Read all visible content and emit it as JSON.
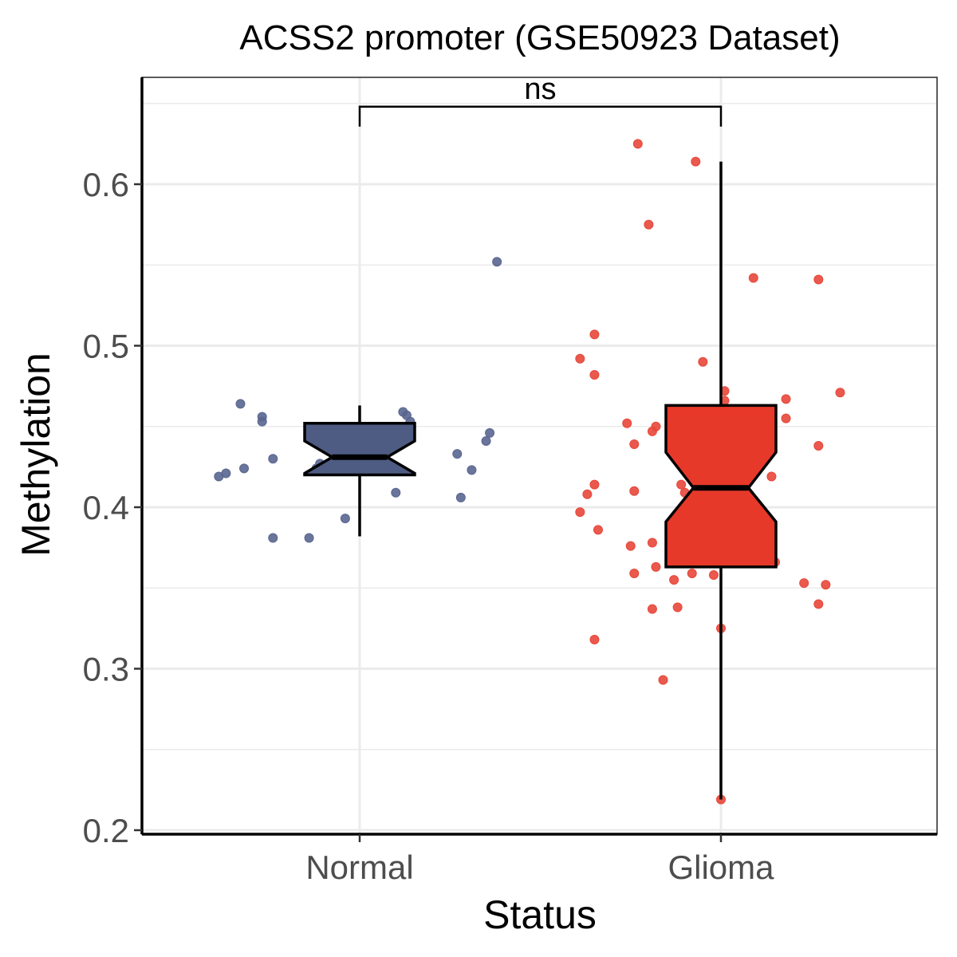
{
  "chart_data": {
    "type": "box",
    "title": "ACSS2 promoter (GSE50923 Dataset)",
    "xlabel": "Status",
    "ylabel": "Methylation",
    "ylim": [
      0.197,
      0.665
    ],
    "yticks": [
      0.2,
      0.3,
      0.4,
      0.5,
      0.6
    ],
    "ytick_labels": [
      "0.2",
      "0.3",
      "0.4",
      "0.5",
      "0.6"
    ],
    "grid": true,
    "categories": [
      "Normal",
      "Glioma"
    ],
    "significance": {
      "label": "ns",
      "groups": [
        "Normal",
        "Glioma"
      ],
      "y": 0.648
    },
    "series": [
      {
        "name": "Normal",
        "color": "#4E5B82",
        "point_color": "#5A6690",
        "box": {
          "whisker_low": 0.382,
          "q1": 0.42,
          "median": 0.431,
          "q3": 0.452,
          "whisker_high": 0.463,
          "notch_low": 0.421,
          "notch_high": 0.441
        },
        "points": [
          {
            "jitter": -0.33,
            "y": 0.464
          },
          {
            "jitter": -0.27,
            "y": 0.456
          },
          {
            "jitter": -0.27,
            "y": 0.453
          },
          {
            "jitter": -0.24,
            "y": 0.43
          },
          {
            "jitter": -0.32,
            "y": 0.424
          },
          {
            "jitter": -0.37,
            "y": 0.421
          },
          {
            "jitter": -0.39,
            "y": 0.419
          },
          {
            "jitter": -0.24,
            "y": 0.381
          },
          {
            "jitter": -0.14,
            "y": 0.381
          },
          {
            "jitter": -0.04,
            "y": 0.393
          },
          {
            "jitter": -0.11,
            "y": 0.427
          },
          {
            "jitter": -0.12,
            "y": 0.424
          },
          {
            "jitter": -0.04,
            "y": 0.432
          },
          {
            "jitter": 0.12,
            "y": 0.459
          },
          {
            "jitter": 0.13,
            "y": 0.457
          },
          {
            "jitter": 0.14,
            "y": 0.453
          },
          {
            "jitter": 0.38,
            "y": 0.552
          },
          {
            "jitter": 0.36,
            "y": 0.446
          },
          {
            "jitter": 0.35,
            "y": 0.441
          },
          {
            "jitter": 0.27,
            "y": 0.433
          },
          {
            "jitter": 0.31,
            "y": 0.423
          },
          {
            "jitter": 0.1,
            "y": 0.409
          },
          {
            "jitter": 0.28,
            "y": 0.406
          }
        ]
      },
      {
        "name": "Glioma",
        "color": "#E6392A",
        "point_color": "#E8473A",
        "box": {
          "whisker_low": 0.219,
          "q1": 0.363,
          "median": 0.412,
          "q3": 0.463,
          "whisker_high": 0.614,
          "notch_low": 0.391,
          "notch_high": 0.434
        },
        "points": [
          {
            "jitter": -0.23,
            "y": 0.625
          },
          {
            "jitter": -0.07,
            "y": 0.614
          },
          {
            "jitter": -0.2,
            "y": 0.575
          },
          {
            "jitter": 0.09,
            "y": 0.542
          },
          {
            "jitter": 0.27,
            "y": 0.541
          },
          {
            "jitter": -0.35,
            "y": 0.507
          },
          {
            "jitter": -0.39,
            "y": 0.492
          },
          {
            "jitter": -0.35,
            "y": 0.482
          },
          {
            "jitter": -0.05,
            "y": 0.49
          },
          {
            "jitter": 0.01,
            "y": 0.472
          },
          {
            "jitter": 0.01,
            "y": 0.466
          },
          {
            "jitter": 0.18,
            "y": 0.467
          },
          {
            "jitter": 0.18,
            "y": 0.455
          },
          {
            "jitter": 0.33,
            "y": 0.471
          },
          {
            "jitter": 0.27,
            "y": 0.438
          },
          {
            "jitter": -0.26,
            "y": 0.452
          },
          {
            "jitter": -0.18,
            "y": 0.45
          },
          {
            "jitter": -0.19,
            "y": 0.447
          },
          {
            "jitter": -0.24,
            "y": 0.439
          },
          {
            "jitter": 0.14,
            "y": 0.419
          },
          {
            "jitter": -0.35,
            "y": 0.414
          },
          {
            "jitter": -0.37,
            "y": 0.408
          },
          {
            "jitter": -0.24,
            "y": 0.41
          },
          {
            "jitter": -0.11,
            "y": 0.414
          },
          {
            "jitter": -0.1,
            "y": 0.409
          },
          {
            "jitter": -0.39,
            "y": 0.397
          },
          {
            "jitter": -0.34,
            "y": 0.386
          },
          {
            "jitter": -0.25,
            "y": 0.376
          },
          {
            "jitter": -0.19,
            "y": 0.378
          },
          {
            "jitter": -0.24,
            "y": 0.359
          },
          {
            "jitter": -0.18,
            "y": 0.363
          },
          {
            "jitter": -0.13,
            "y": 0.355
          },
          {
            "jitter": -0.08,
            "y": 0.359
          },
          {
            "jitter": -0.02,
            "y": 0.358
          },
          {
            "jitter": 0.15,
            "y": 0.366
          },
          {
            "jitter": 0.23,
            "y": 0.353
          },
          {
            "jitter": 0.29,
            "y": 0.352
          },
          {
            "jitter": 0.27,
            "y": 0.34
          },
          {
            "jitter": -0.19,
            "y": 0.337
          },
          {
            "jitter": -0.12,
            "y": 0.338
          },
          {
            "jitter": 0.0,
            "y": 0.325
          },
          {
            "jitter": -0.35,
            "y": 0.318
          },
          {
            "jitter": -0.16,
            "y": 0.293
          },
          {
            "jitter": 0.0,
            "y": 0.219
          }
        ]
      }
    ]
  }
}
